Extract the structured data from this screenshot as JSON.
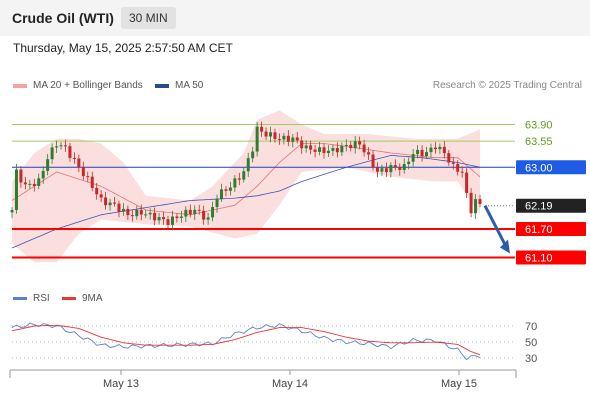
{
  "header": {
    "title": "Crude Oil (WTI)",
    "timeframe": "30 MIN"
  },
  "subtitle": "Thursday, May 15, 2025 2:57:50 AM CET",
  "credit": "Research © 2025 Trading Central",
  "colors": {
    "up": "#2e7d32",
    "down": "#c62828",
    "bollinger": "#f4a3a0",
    "ma20": "#e57373",
    "ma50": "#3f51b5",
    "resistance": "#9ccc65",
    "pivot": "#1e40c0",
    "support": "#ff0000",
    "rsi": "#5b7fd6",
    "rsi_ma": "#e53935"
  },
  "legend": {
    "ma20": "MA 20 + Bollinger Bands",
    "ma50": "MA 50",
    "rsi": "RSI",
    "rsi_ma": "9MA"
  },
  "chart_data": [
    {
      "type": "candlestick",
      "instrument": "Crude Oil (WTI)",
      "interval": "30 MIN",
      "x_ticks": [
        "May 13",
        "May 14",
        "May 15"
      ],
      "ylim": [
        60.5,
        64.5
      ],
      "grid": false,
      "levels": [
        {
          "value": 63.9,
          "label": "63.90",
          "role": "resistance"
        },
        {
          "value": 63.55,
          "label": "63.55",
          "role": "resistance"
        },
        {
          "value": 63.0,
          "label": "63.00",
          "role": "pivot"
        },
        {
          "value": 62.19,
          "label": "62.19",
          "role": "last"
        },
        {
          "value": 61.7,
          "label": "61.70",
          "role": "support"
        },
        {
          "value": 61.1,
          "label": "61.10",
          "role": "support"
        }
      ],
      "projection": {
        "from": 62.19,
        "to": 61.1
      },
      "close_path": [
        [
          0,
          62.1
        ],
        [
          1,
          62.9
        ],
        [
          3,
          62.6
        ],
        [
          6,
          62.7
        ],
        [
          8,
          63.2
        ],
        [
          10,
          63.5
        ],
        [
          12,
          63.4
        ],
        [
          15,
          63.0
        ],
        [
          18,
          62.6
        ],
        [
          20,
          62.3
        ],
        [
          23,
          62.2
        ],
        [
          26,
          62.0
        ],
        [
          29,
          62.05
        ],
        [
          32,
          61.95
        ],
        [
          35,
          61.85
        ],
        [
          38,
          62.0
        ],
        [
          41,
          62.1
        ],
        [
          44,
          61.9
        ],
        [
          46,
          62.4
        ],
        [
          49,
          62.6
        ],
        [
          52,
          62.9
        ],
        [
          54,
          63.4
        ],
        [
          55,
          63.8
        ],
        [
          57,
          63.7
        ],
        [
          60,
          63.6
        ],
        [
          63,
          63.6
        ],
        [
          66,
          63.4
        ],
        [
          69,
          63.35
        ],
        [
          72,
          63.35
        ],
        [
          75,
          63.45
        ],
        [
          78,
          63.5
        ],
        [
          80,
          63.2
        ],
        [
          82,
          62.9
        ],
        [
          85,
          63.0
        ],
        [
          88,
          63.0
        ],
        [
          90,
          63.3
        ],
        [
          93,
          63.3
        ],
        [
          95,
          63.45
        ],
        [
          97,
          63.3
        ],
        [
          99,
          63.0
        ],
        [
          101,
          62.9
        ],
        [
          102,
          62.4
        ],
        [
          103,
          62.1
        ],
        [
          104,
          62.3
        ],
        [
          105,
          62.2
        ]
      ],
      "ma20_path": [
        [
          0,
          62.3
        ],
        [
          10,
          62.9
        ],
        [
          20,
          62.6
        ],
        [
          30,
          62.1
        ],
        [
          40,
          62.0
        ],
        [
          50,
          62.2
        ],
        [
          55,
          62.6
        ],
        [
          60,
          63.1
        ],
        [
          65,
          63.5
        ],
        [
          70,
          63.5
        ],
        [
          78,
          63.4
        ],
        [
          85,
          63.3
        ],
        [
          95,
          63.2
        ],
        [
          100,
          63.2
        ],
        [
          105,
          62.8
        ]
      ],
      "ma50_path": [
        [
          0,
          61.3
        ],
        [
          10,
          61.7
        ],
        [
          20,
          62.0
        ],
        [
          30,
          62.15
        ],
        [
          40,
          62.3
        ],
        [
          50,
          62.35
        ],
        [
          55,
          62.4
        ],
        [
          60,
          62.5
        ],
        [
          65,
          62.7
        ],
        [
          75,
          63.0
        ],
        [
          85,
          63.25
        ],
        [
          92,
          63.2
        ],
        [
          100,
          63.1
        ],
        [
          105,
          63.0
        ]
      ],
      "bollinger_upper_path": [
        [
          0,
          62.7
        ],
        [
          5,
          63.3
        ],
        [
          10,
          63.6
        ],
        [
          15,
          63.6
        ],
        [
          20,
          63.5
        ],
        [
          25,
          63.1
        ],
        [
          30,
          62.4
        ],
        [
          40,
          62.3
        ],
        [
          45,
          62.6
        ],
        [
          52,
          63.3
        ],
        [
          55,
          64.0
        ],
        [
          60,
          64.2
        ],
        [
          65,
          63.9
        ],
        [
          70,
          63.7
        ],
        [
          80,
          63.7
        ],
        [
          90,
          63.6
        ],
        [
          100,
          63.6
        ],
        [
          105,
          63.8
        ]
      ],
      "bollinger_lower_path": [
        [
          0,
          61.4
        ],
        [
          5,
          61.0
        ],
        [
          10,
          61.0
        ],
        [
          15,
          61.6
        ],
        [
          20,
          61.9
        ],
        [
          30,
          61.8
        ],
        [
          40,
          61.75
        ],
        [
          46,
          61.6
        ],
        [
          50,
          61.5
        ],
        [
          55,
          61.6
        ],
        [
          60,
          62.2
        ],
        [
          65,
          62.9
        ],
        [
          75,
          63.0
        ],
        [
          85,
          62.8
        ],
        [
          95,
          62.7
        ],
        [
          100,
          62.7
        ],
        [
          105,
          62.0
        ]
      ]
    },
    {
      "type": "line",
      "title": "",
      "ylim": [
        20,
        85
      ],
      "y_ticks": [
        30,
        50,
        70
      ],
      "series": [
        {
          "name": "RSI",
          "values_path": [
            [
              0,
              68
            ],
            [
              5,
              72
            ],
            [
              10,
              70
            ],
            [
              15,
              58
            ],
            [
              20,
              46
            ],
            [
              25,
              44
            ],
            [
              30,
              45
            ],
            [
              35,
              46
            ],
            [
              40,
              47
            ],
            [
              45,
              48
            ],
            [
              50,
              60
            ],
            [
              55,
              68
            ],
            [
              60,
              71
            ],
            [
              65,
              64
            ],
            [
              70,
              55
            ],
            [
              75,
              50
            ],
            [
              80,
              48
            ],
            [
              85,
              44
            ],
            [
              90,
              52
            ],
            [
              95,
              52
            ],
            [
              100,
              40
            ],
            [
              102,
              30
            ],
            [
              104,
              32
            ],
            [
              105,
              33
            ]
          ]
        },
        {
          "name": "9MA",
          "values_path": [
            [
              0,
              64
            ],
            [
              5,
              70
            ],
            [
              10,
              71
            ],
            [
              15,
              67
            ],
            [
              20,
              56
            ],
            [
              25,
              49
            ],
            [
              30,
              46
            ],
            [
              35,
              46
            ],
            [
              40,
              46
            ],
            [
              45,
              47
            ],
            [
              50,
              53
            ],
            [
              55,
              62
            ],
            [
              60,
              68
            ],
            [
              65,
              68
            ],
            [
              70,
              63
            ],
            [
              75,
              56
            ],
            [
              80,
              51
            ],
            [
              85,
              49
            ],
            [
              90,
              49
            ],
            [
              95,
              50
            ],
            [
              100,
              47
            ],
            [
              103,
              38
            ],
            [
              105,
              34
            ]
          ]
        }
      ]
    }
  ]
}
